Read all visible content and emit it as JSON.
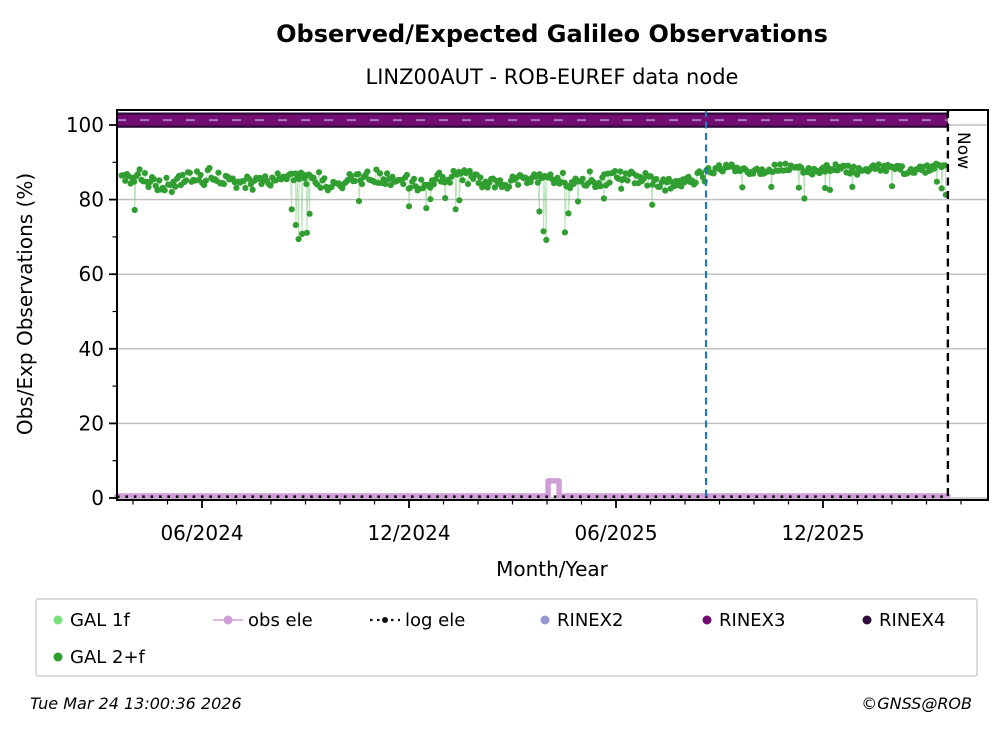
{
  "title": "Observed/Expected Galileo Observations",
  "subtitle": "LINZ00AUT - ROB-EUREF data node",
  "footer": {
    "timestamp": "Tue Mar 24 13:00:36 2026",
    "credit": "©GNSS@ROB"
  },
  "now_label": "Now",
  "chart_data": {
    "type": "scatter",
    "title": "Observed/Expected Galileo Observations",
    "subtitle": "LINZ00AUT - ROB-EUREF data node",
    "xlabel": "Month/Year",
    "ylabel": "Obs/Exp Observations (%)",
    "x_tick_labels": [
      "06/2024",
      "12/2024",
      "06/2025",
      "12/2025"
    ],
    "x_tick_months": [
      0,
      6,
      12,
      18
    ],
    "x_minor_tick_months": [
      -2,
      -1,
      1,
      2,
      3,
      4,
      5,
      7,
      8,
      9,
      10,
      11,
      13,
      14,
      15,
      16,
      17,
      19,
      20,
      21,
      22
    ],
    "x_range_months_since_2024_06": [
      -2.46,
      22.8
    ],
    "y_ticks": [
      0,
      20,
      40,
      60,
      80,
      100
    ],
    "y_minor_ticks": [
      10,
      30,
      50,
      70,
      90
    ],
    "ylim": [
      -0.5,
      104.5
    ],
    "grid": "horizontal, light gray",
    "legend_position": "below plot, two rows",
    "event_line": {
      "month": 14.61,
      "color": "#1f77b4",
      "style": "dashed vertical"
    },
    "now_line": {
      "month": 21.62,
      "label": "Now",
      "color": "#000000",
      "style": "dashed vertical"
    },
    "series": [
      {
        "name": "GAL 1f",
        "color": "#77e07a",
        "marker": "dot",
        "points_visible": false
      },
      {
        "name": "GAL 2+f",
        "color": "#319e31",
        "marker": "dot",
        "description": "dense daily scatter band",
        "band_before_event": {
          "mean": 85.1,
          "typical_range": [
            82,
            90
          ]
        },
        "band_after_event": {
          "mean": 88.2,
          "typical_range": [
            86,
            90.3
          ]
        },
        "outliers": [
          [
            -1.95,
            77.2
          ],
          [
            2.6,
            77.4
          ],
          [
            2.72,
            73.2
          ],
          [
            2.8,
            69.4
          ],
          [
            2.9,
            70.8
          ],
          [
            3.04,
            71.1
          ],
          [
            3.12,
            76.2
          ],
          [
            4.55,
            79.6
          ],
          [
            6.0,
            78.2
          ],
          [
            6.5,
            77.7
          ],
          [
            6.62,
            80.1
          ],
          [
            7.05,
            80.4
          ],
          [
            7.35,
            77.4
          ],
          [
            7.46,
            79.8
          ],
          [
            9.78,
            76.8
          ],
          [
            9.9,
            71.5
          ],
          [
            9.98,
            69.2
          ],
          [
            10.52,
            71.2
          ],
          [
            10.62,
            76.3
          ],
          [
            10.9,
            79.5
          ],
          [
            11.65,
            80.3
          ],
          [
            12.15,
            82.9
          ],
          [
            13.05,
            78.6
          ],
          [
            15.66,
            83.3
          ],
          [
            16.5,
            83.4
          ],
          [
            17.3,
            83.2
          ],
          [
            17.46,
            80.3
          ],
          [
            18.06,
            83.1
          ],
          [
            18.2,
            82.6
          ],
          [
            18.85,
            83.4
          ],
          [
            20.0,
            83.6
          ],
          [
            21.3,
            84.8
          ],
          [
            21.44,
            83.0
          ],
          [
            21.56,
            81.3
          ]
        ],
        "generator": {
          "seed": 11,
          "m_start": -2.33,
          "m_end": 21.58,
          "step": 0.052,
          "event_month": 14.61,
          "base_before": 85.1,
          "base_after": 88.15,
          "jitter_before": 3.3,
          "jitter_after": 2.1
        }
      },
      {
        "name": "obs ele",
        "color": "#cf9ed6",
        "type": "line",
        "level": 0.55,
        "spike": {
          "start_month": 10.03,
          "end_month": 10.35,
          "value": 4.6
        },
        "extent_months": [
          -2.46,
          21.62
        ]
      },
      {
        "name": "log ele",
        "color": "#111111",
        "type": "dotted-line",
        "level": 0.35,
        "extent_months": [
          -2.46,
          21.62
        ]
      },
      {
        "name": "RINEX2",
        "color": "#9b97d4",
        "render": "faint dashes inside top band",
        "level": 101.3
      },
      {
        "name": "RINEX3",
        "color": "#720d72",
        "render": "inner band",
        "band": [
          99.85,
          102.75
        ]
      },
      {
        "name": "RINEX4",
        "color": "#2d0a38",
        "render": "outer band",
        "band": [
          99.25,
          103.35
        ]
      }
    ]
  },
  "legend": {
    "items": [
      {
        "label": "GAL 1f",
        "color": "#77e07a",
        "marker": "dot"
      },
      {
        "label": "obs ele",
        "color": "#cf9ed6",
        "marker": "line-dot"
      },
      {
        "label": "log ele",
        "color": "#111111",
        "marker": "dotted-line"
      },
      {
        "label": "RINEX2",
        "color": "#9b97d4",
        "marker": "dot"
      },
      {
        "label": "RINEX3",
        "color": "#720d72",
        "marker": "dot"
      },
      {
        "label": "RINEX4",
        "color": "#2d0a38",
        "marker": "dot"
      },
      {
        "label": "GAL 2+f",
        "color": "#319e31",
        "marker": "dot"
      }
    ]
  }
}
